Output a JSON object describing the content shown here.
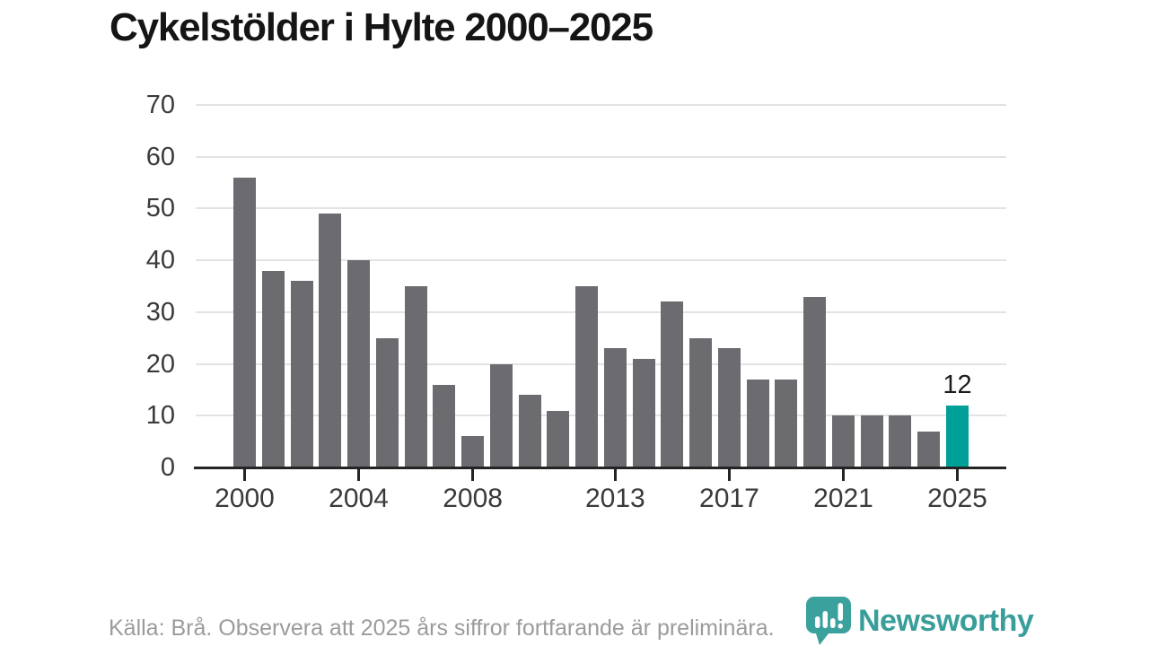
{
  "title": "Cykelstölder i Hylte 2000–2025",
  "chart_data": {
    "type": "bar",
    "title": "Cykelstölder i Hylte 2000–2025",
    "xlabel": "",
    "ylabel": "",
    "categories": [
      2000,
      2001,
      2002,
      2003,
      2004,
      2005,
      2006,
      2007,
      2008,
      2009,
      2010,
      2011,
      2012,
      2013,
      2014,
      2015,
      2016,
      2017,
      2018,
      2019,
      2020,
      2021,
      2022,
      2023,
      2024,
      2025
    ],
    "values": [
      56,
      38,
      36,
      49,
      40,
      25,
      35,
      16,
      6,
      20,
      14,
      11,
      35,
      23,
      21,
      32,
      25,
      23,
      17,
      17,
      33,
      10,
      10,
      10,
      7,
      12
    ],
    "ylim": [
      0,
      70
    ],
    "yticks": [
      0,
      10,
      20,
      30,
      40,
      50,
      60,
      70
    ],
    "xticks": [
      2000,
      2004,
      2008,
      2013,
      2017,
      2021,
      2025
    ],
    "grid": "horizontal",
    "legend": "none",
    "bar_color": "#6b6b70",
    "highlight_year": 2025,
    "highlight_color": "#00a099",
    "annotation": {
      "year": 2025,
      "label": "12"
    }
  },
  "footer": {
    "source_note": "Källa: Brå. Observera att 2025 års siffror fortfarande är preliminära.",
    "logo_text": "Newsworthy",
    "logo_color": "#399e9a"
  }
}
